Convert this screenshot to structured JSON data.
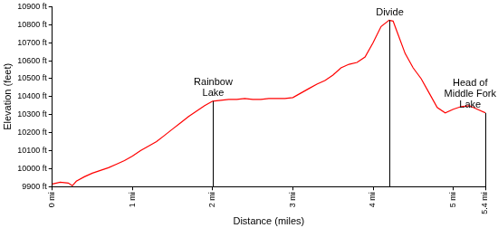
{
  "chart_data": {
    "type": "line",
    "x_label": "Distance (miles)",
    "y_label": "Elevation (feet)",
    "x": [
      0,
      0.1,
      0.2,
      0.25,
      0.3,
      0.4,
      0.5,
      0.6,
      0.7,
      0.8,
      0.9,
      1.0,
      1.1,
      1.2,
      1.3,
      1.4,
      1.5,
      1.6,
      1.7,
      1.8,
      1.9,
      2.0,
      2.1,
      2.2,
      2.3,
      2.4,
      2.5,
      2.6,
      2.7,
      2.8,
      2.9,
      3.0,
      3.1,
      3.2,
      3.3,
      3.4,
      3.5,
      3.6,
      3.7,
      3.8,
      3.9,
      4.0,
      4.1,
      4.2,
      4.25,
      4.3,
      4.4,
      4.5,
      4.6,
      4.7,
      4.8,
      4.9,
      5.0,
      5.1,
      5.2,
      5.3,
      5.4
    ],
    "values": [
      9915,
      9925,
      9920,
      9905,
      9930,
      9955,
      9975,
      9990,
      10005,
      10025,
      10045,
      10070,
      10100,
      10125,
      10150,
      10185,
      10220,
      10255,
      10290,
      10320,
      10350,
      10375,
      10380,
      10385,
      10385,
      10390,
      10385,
      10385,
      10390,
      10390,
      10390,
      10395,
      10420,
      10445,
      10470,
      10490,
      10520,
      10560,
      10580,
      10590,
      10620,
      10700,
      10790,
      10825,
      10820,
      10760,
      10640,
      10560,
      10500,
      10420,
      10340,
      10310,
      10330,
      10345,
      10350,
      10330,
      10310
    ],
    "color": "#ff0000",
    "xlim": [
      0,
      5.4
    ],
    "xticks": [
      {
        "value": 0,
        "label": "0 mi"
      },
      {
        "value": 1,
        "label": "1 mi"
      },
      {
        "value": 2,
        "label": "2 mi"
      },
      {
        "value": 3,
        "label": "3 mi"
      },
      {
        "value": 4,
        "label": "4 mi"
      },
      {
        "value": 5,
        "label": "5 mi"
      },
      {
        "value": 5.4,
        "label": "5.4 mi"
      }
    ],
    "ylim": [
      9900,
      10900
    ],
    "yticks": [
      {
        "value": 9900,
        "label": "9900 ft"
      },
      {
        "value": 10000,
        "label": "10000 ft"
      },
      {
        "value": 10100,
        "label": "10100 ft"
      },
      {
        "value": 10200,
        "label": "10200 ft"
      },
      {
        "value": 10300,
        "label": "10300 ft"
      },
      {
        "value": 10400,
        "label": "10400 ft"
      },
      {
        "value": 10500,
        "label": "10500 ft"
      },
      {
        "value": 10600,
        "label": "10600 ft"
      },
      {
        "value": 10700,
        "label": "10700 ft"
      },
      {
        "value": 10800,
        "label": "10800 ft"
      },
      {
        "value": 10900,
        "label": "10900 ft"
      }
    ],
    "grid": false,
    "annotations": [
      {
        "x": 2.0,
        "y": 10375,
        "label": "Rainbow Lake"
      },
      {
        "x": 4.2,
        "y": 10825,
        "label": "Divide"
      },
      {
        "x": 5.4,
        "y": 10310,
        "label": "Head of Middle Fork Lake"
      }
    ]
  }
}
